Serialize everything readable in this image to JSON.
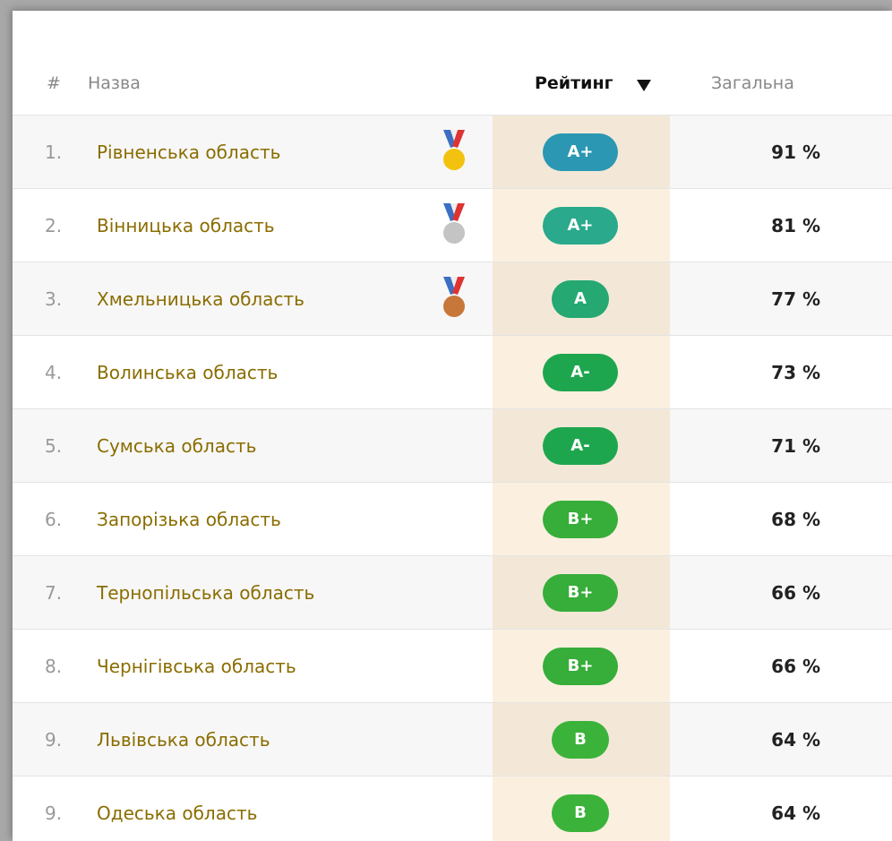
{
  "table": {
    "header": [
      "#",
      "Назва",
      "Рейтинг",
      "Загальна"
    ],
    "rows": [
      {
        "rank": "1.",
        "name": "Рівненська область",
        "grade": "A+",
        "color": "#2b97b3",
        "total": "91 %"
      },
      {
        "rank": "2.",
        "name": "Вінницька область",
        "grade": "A+",
        "color": "#2aa98c",
        "total": "81 %"
      },
      {
        "rank": "3.",
        "name": "Хмельницька область",
        "grade": "A",
        "color": "#25a871",
        "total": "77 %"
      },
      {
        "rank": "4.",
        "name": "Волинська область",
        "grade": "A-",
        "color": "#1ea64f",
        "total": "73 %"
      },
      {
        "rank": "5.",
        "name": "Сумська область",
        "grade": "A-",
        "color": "#1ea64f",
        "total": "71 %"
      },
      {
        "rank": "6.",
        "name": "Запорізька область",
        "grade": "B+",
        "color": "#37ad3a",
        "total": "68 %"
      },
      {
        "rank": "7.",
        "name": "Тернопільська область",
        "grade": "B+",
        "color": "#37ad3a",
        "total": "66 %"
      },
      {
        "rank": "8.",
        "name": "Чернігівська область",
        "grade": "B+",
        "color": "#37ad3a",
        "total": "66 %"
      },
      {
        "rank": "9.",
        "name": "Львівська область",
        "grade": "B",
        "color": "#3bb33b",
        "total": "64 %"
      },
      {
        "rank": "9.",
        "name": "Одеська область",
        "grade": "B",
        "color": "#3bb33b",
        "total": "64 %"
      }
    ]
  }
}
